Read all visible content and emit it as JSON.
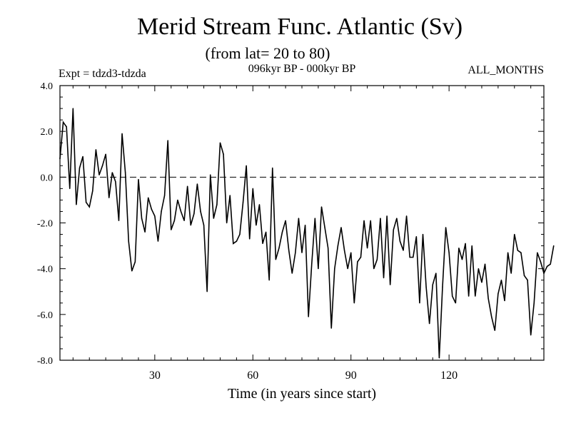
{
  "chart_data": {
    "type": "line",
    "title": "Merid Stream Func. Atlantic (Sv)",
    "subtitle": "(from lat= 20 to 80)",
    "header_left": "Expt = tdzd3-tdzda",
    "header_center": "096kyr BP - 000kyr BP",
    "header_right": "ALL_MONTHS",
    "xlabel": "Time (in years since start)",
    "ylabel": "",
    "xlim": [
      1,
      149
    ],
    "ylim": [
      -8,
      4
    ],
    "x_ticks": [
      30,
      60,
      90,
      120
    ],
    "x_tick_labels": [
      "30",
      "60",
      "90",
      "120"
    ],
    "y_ticks": [
      -8,
      -6,
      -4,
      -2,
      0,
      2,
      4
    ],
    "y_tick_labels": [
      "-8.0",
      "-6.0",
      "-4.0",
      "-2.0",
      "0.0",
      "2.0",
      "4.0"
    ],
    "reference_line": 0,
    "grid": false,
    "series": [
      {
        "name": "stream function",
        "x_start": 1,
        "x_step": 1,
        "values": [
          0.8,
          2.4,
          2.2,
          -0.5,
          3.0,
          -1.2,
          0.4,
          0.9,
          -1.1,
          -1.3,
          -0.6,
          1.2,
          0.1,
          0.5,
          1.0,
          -0.9,
          0.2,
          -0.2,
          -1.9,
          1.9,
          0.2,
          -2.8,
          -4.1,
          -3.7,
          -0.1,
          -1.8,
          -2.4,
          -0.9,
          -1.4,
          -1.7,
          -2.8,
          -1.5,
          -0.8,
          1.6,
          -2.3,
          -1.9,
          -1.0,
          -1.5,
          -1.9,
          -0.4,
          -2.1,
          -1.6,
          -0.3,
          -1.5,
          -2.1,
          -5.0,
          0.1,
          -1.8,
          -1.2,
          1.5,
          1.0,
          -2.0,
          -0.8,
          -2.9,
          -2.8,
          -2.5,
          -1.1,
          0.5,
          -2.7,
          -0.5,
          -2.1,
          -1.2,
          -2.9,
          -2.4,
          -4.5,
          0.4,
          -3.6,
          -3.1,
          -2.4,
          -1.9,
          -3.2,
          -4.2,
          -3.3,
          -1.8,
          -3.3,
          -2.1,
          -6.1,
          -3.8,
          -1.8,
          -4.0,
          -1.3,
          -2.2,
          -3.1,
          -6.6,
          -4.0,
          -3.0,
          -2.2,
          -3.2,
          -4.0,
          -3.3,
          -5.5,
          -3.7,
          -3.5,
          -1.9,
          -3.1,
          -1.9,
          -4.0,
          -3.6,
          -1.8,
          -4.4,
          -1.7,
          -4.7,
          -2.3,
          -1.8,
          -2.8,
          -3.2,
          -1.7,
          -3.5,
          -3.5,
          -2.6,
          -5.5,
          -2.5,
          -4.8,
          -6.4,
          -4.7,
          -4.2,
          -7.9,
          -4.8,
          -2.2,
          -3.3,
          -5.2,
          -5.5,
          -3.1,
          -3.6,
          -2.9,
          -5.2,
          -3.0,
          -5.2,
          -4.0,
          -4.6,
          -3.8,
          -5.3,
          -6.1,
          -6.7,
          -5.1,
          -4.5,
          -5.4,
          -3.3,
          -4.2,
          -2.5,
          -3.2,
          -3.3,
          -4.3,
          -4.5,
          -6.9,
          -5.5,
          -3.3,
          -3.7,
          -4.2,
          -3.9,
          -3.8,
          -3.0
        ]
      }
    ]
  }
}
